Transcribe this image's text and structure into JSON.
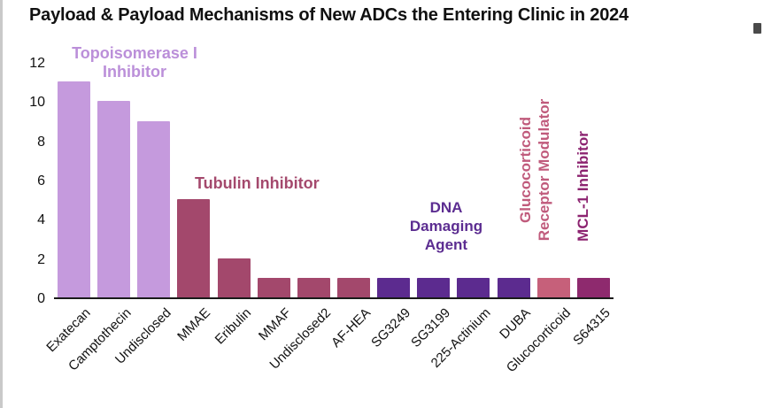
{
  "title": "Payload & Payload Mechanisms of New ADCs the Entering Clinic in 2024",
  "chart_data": {
    "type": "bar",
    "categories": [
      "Exatecan",
      "Camptothecin",
      "Undisclosed",
      "MMAE",
      "Eribulin",
      "MMAF",
      "Undisclosed2",
      "AF-HEA",
      "SG3249",
      "SG3199",
      "225-Actinium",
      "DUBA",
      "Glucocorticoid",
      "S64315"
    ],
    "values": [
      11,
      10,
      9,
      5,
      2,
      1,
      1,
      1,
      1,
      1,
      1,
      1,
      1,
      1
    ],
    "bar_colors": [
      "#c59add",
      "#c59add",
      "#c59add",
      "#a3486c",
      "#a3486c",
      "#a3486c",
      "#a3486c",
      "#a3486c",
      "#5c2b8f",
      "#5c2b8f",
      "#5c2b8f",
      "#5c2b8f",
      "#c6607a",
      "#8e2a6e"
    ],
    "title": "Payload & Payload Mechanisms of New ADCs the Entering Clinic in 2024",
    "xlabel": "",
    "ylabel": "",
    "ylim": [
      0,
      12
    ],
    "yticks": [
      0,
      2,
      4,
      6,
      8,
      10,
      12
    ],
    "grid": false,
    "legend": "none",
    "annotations": {
      "topoisomerase": {
        "lines": [
          "Topoisomerase I",
          "Inhibitor"
        ],
        "color": "#bb8fd9"
      },
      "tubulin": {
        "text": "Tubulin Inhibitor",
        "color": "#a4496d"
      },
      "dna": {
        "lines": [
          "DNA",
          "Damaging",
          "Agent"
        ],
        "color": "#5c2d91"
      },
      "glucocorticoid": {
        "lines": [
          "Glucocorticoid",
          "Receptor Modulator"
        ],
        "color": "#c05b7c",
        "rotation": -90
      },
      "mcl1": {
        "text": "MCL-1 Inhibitor",
        "color": "#8c2370",
        "rotation": -90
      }
    }
  }
}
